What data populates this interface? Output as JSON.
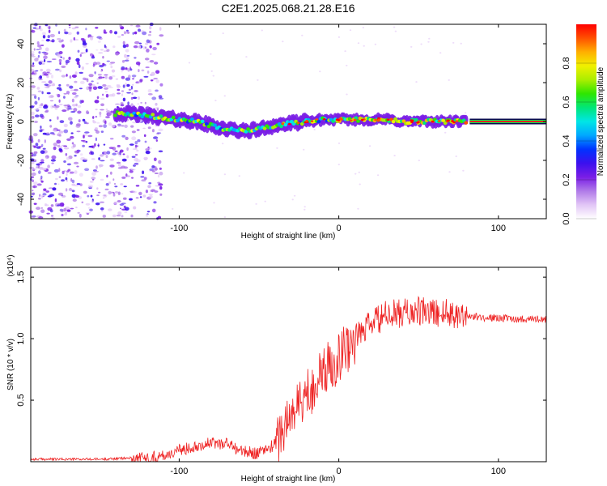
{
  "title": "C2E1.2025.068.21.28.E16",
  "chart_data": [
    {
      "type": "heatmap",
      "xlabel": "Height of straight line (km)",
      "ylabel": "Frequency (Hz)",
      "xlim": [
        -193,
        130
      ],
      "ylim": [
        -50,
        50
      ],
      "xticks": [
        -100,
        0,
        100
      ],
      "yticks": [
        -40,
        -20,
        0,
        20,
        40
      ],
      "grid": false,
      "colorbar": {
        "label": "Normalized spectral amplitude",
        "range": [
          0,
          1
        ],
        "ticks": [
          "0.0",
          "0.2",
          "0.4",
          "0.6",
          "0.8"
        ],
        "colors": [
          "#ffffff",
          "#e2c6f6",
          "#b07ae8",
          "#7a1ee6",
          "#3b10ee",
          "#0033ff",
          "#00a8ff",
          "#00e6e6",
          "#00e67a",
          "#2ee600",
          "#aaee00",
          "#f0f000",
          "#ffb000",
          "#ff5000",
          "#ff0000"
        ]
      },
      "trace": {
        "x": [
          -140,
          -130,
          -120,
          -110,
          -100,
          -90,
          -80,
          -70,
          -60,
          -50,
          -40,
          -30,
          -20,
          -10,
          0,
          10,
          20,
          30,
          40,
          50,
          60,
          70,
          80
        ],
        "freq": [
          4,
          4,
          3,
          2,
          1,
          0,
          -2,
          -4,
          -5,
          -4,
          -2,
          -1,
          0,
          1,
          1,
          1,
          1,
          1,
          0,
          0,
          0,
          0,
          0
        ]
      },
      "steady_band": {
        "x_start": 82,
        "x_end": 130,
        "freq": 0
      }
    },
    {
      "type": "line",
      "xlabel": "Height of straight line (km)",
      "ylabel": "SNR (10 * v/v)",
      "y_multiplier": "(x10⁴)",
      "xlim": [
        -193,
        130
      ],
      "ylim": [
        0,
        1.58
      ],
      "xticks": [
        -100,
        0,
        100
      ],
      "yticks": [
        "0.5",
        "1.0",
        "1.5"
      ],
      "grid": false,
      "series": [
        {
          "color": "#ee2222",
          "x": [
            -193,
            -170,
            -150,
            -130,
            -120,
            -110,
            -100,
            -90,
            -80,
            -70,
            -60,
            -50,
            -40,
            -35,
            -30,
            -20,
            -10,
            0,
            10,
            20,
            30,
            40,
            50,
            60,
            70,
            80,
            90,
            100,
            110,
            120,
            130
          ],
          "values": [
            0.02,
            0.02,
            0.02,
            0.03,
            0.03,
            0.05,
            0.09,
            0.13,
            0.15,
            0.15,
            0.08,
            0.07,
            0.14,
            0.26,
            0.38,
            0.55,
            0.72,
            0.86,
            1.0,
            1.12,
            1.19,
            1.21,
            1.22,
            1.21,
            1.21,
            1.19,
            1.17,
            1.17,
            1.16,
            1.16,
            1.16
          ]
        }
      ]
    }
  ]
}
